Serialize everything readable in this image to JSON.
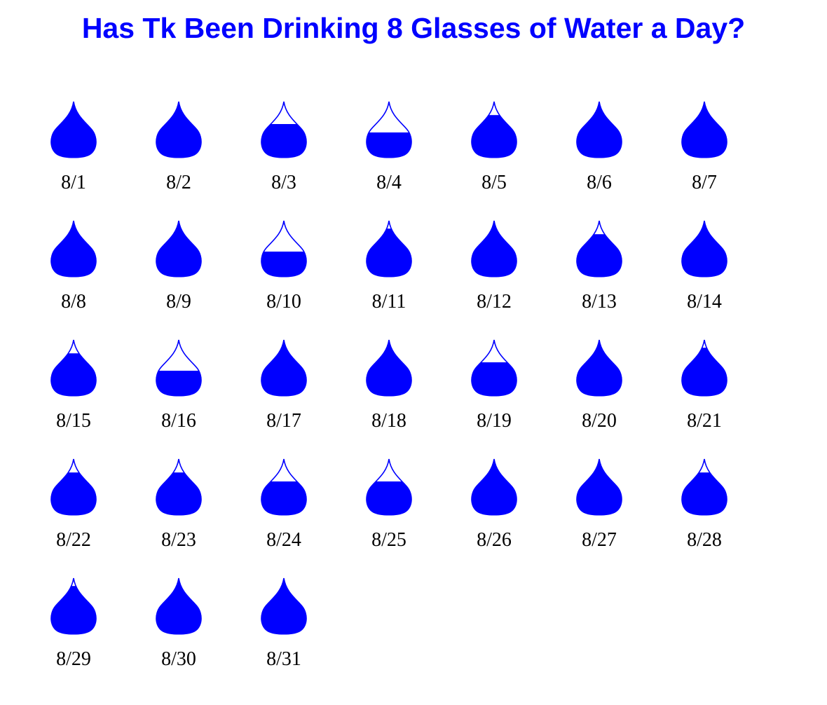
{
  "title": "Has Tk Been Drinking 8 Glasses of Water a Day?",
  "colors": {
    "water": "#0000ff",
    "outline": "#0000ff",
    "background": "#ffffff",
    "label": "#000000"
  },
  "chart_data": {
    "type": "pictogram-calendar",
    "title": "Has Tk Been Drinking 8 Glasses of Water a Day?",
    "glyph": "water-drop-icon",
    "unit": "fraction of 8-glass daily goal (fill level of drop)",
    "columns": 7,
    "days": [
      {
        "label": "8/1",
        "fill": 1.0
      },
      {
        "label": "8/2",
        "fill": 0.98
      },
      {
        "label": "8/3",
        "fill": 0.6
      },
      {
        "label": "8/4",
        "fill": 0.45
      },
      {
        "label": "8/5",
        "fill": 0.76
      },
      {
        "label": "8/6",
        "fill": 0.98
      },
      {
        "label": "8/7",
        "fill": 0.98
      },
      {
        "label": "8/8",
        "fill": 1.0
      },
      {
        "label": "8/9",
        "fill": 1.0
      },
      {
        "label": "8/10",
        "fill": 0.45
      },
      {
        "label": "8/11",
        "fill": 0.86
      },
      {
        "label": "8/12",
        "fill": 1.0
      },
      {
        "label": "8/13",
        "fill": 0.76
      },
      {
        "label": "8/14",
        "fill": 1.0
      },
      {
        "label": "8/15",
        "fill": 0.76
      },
      {
        "label": "8/16",
        "fill": 0.45
      },
      {
        "label": "8/17",
        "fill": 0.98
      },
      {
        "label": "8/18",
        "fill": 0.98
      },
      {
        "label": "8/19",
        "fill": 0.6
      },
      {
        "label": "8/20",
        "fill": 1.0
      },
      {
        "label": "8/21",
        "fill": 0.86
      },
      {
        "label": "8/22",
        "fill": 0.76
      },
      {
        "label": "8/23",
        "fill": 0.76
      },
      {
        "label": "8/24",
        "fill": 0.6
      },
      {
        "label": "8/25",
        "fill": 0.6
      },
      {
        "label": "8/26",
        "fill": 1.0
      },
      {
        "label": "8/27",
        "fill": 1.0
      },
      {
        "label": "8/28",
        "fill": 0.76
      },
      {
        "label": "8/29",
        "fill": 0.86
      },
      {
        "label": "8/30",
        "fill": 1.0
      },
      {
        "label": "8/31",
        "fill": 1.0
      }
    ]
  }
}
